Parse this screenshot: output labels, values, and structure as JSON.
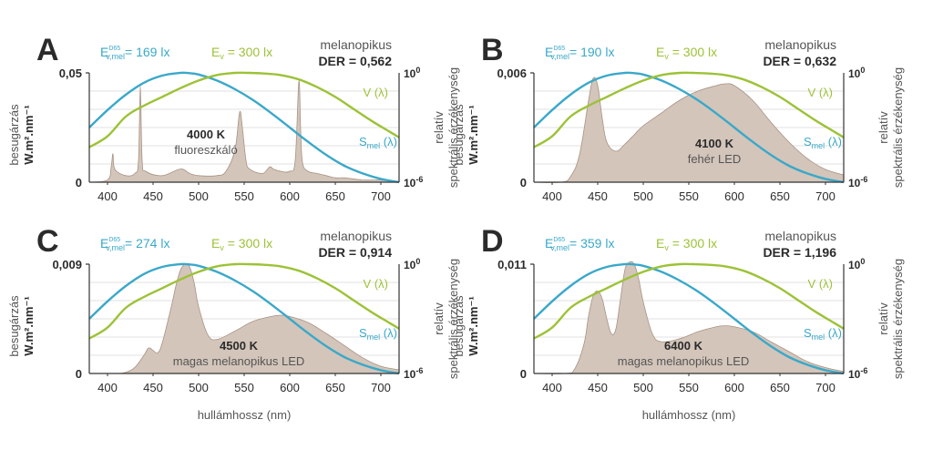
{
  "colors": {
    "smel": "#3aa8c9",
    "vlambda": "#9cc236",
    "spectrum_fill": "#d3c5ba",
    "spectrum_stroke": "#a89384",
    "axis": "#333333",
    "grid": "#d9d9d9",
    "text_dark": "#2b2b2b",
    "text_gray": "#555555"
  },
  "common": {
    "ylabel_line1": "besugárzás",
    "ylabel_line2": "W.m².nm⁻¹",
    "right_ylabel_line1": "relatív",
    "right_ylabel_line2": "spektrális érzékenység",
    "xlabel": "hullámhossz (nm)",
    "right_tick_top_base": "10",
    "right_tick_top_exp": "0",
    "right_tick_bottom_base": "10",
    "right_tick_bottom_exp": "-6",
    "ev_label": "E",
    "ev_sub": "v",
    "ev_value": " = 300 lx",
    "emel_label": "E",
    "emel_sup": "D65",
    "emel_sub": "v,mel",
    "melanopic": "melanopikus",
    "vlambda_label": "V (λ)",
    "smel_label": "S",
    "smel_sub": "mel",
    "smel_suffix": " (λ)",
    "y_zero": "0"
  },
  "chart_data": [
    {
      "panel": "A",
      "type": "area",
      "emel_value": "= 169 lx",
      "der": "DER = 0,562",
      "ymax_label": "0,05",
      "ylim": [
        0,
        0.05
      ],
      "xlim": [
        380,
        720
      ],
      "xticks": [
        400,
        450,
        500,
        550,
        600,
        650,
        700
      ],
      "source_title": "4000 K",
      "source_subtitle": "fluoreszkáló",
      "spectrum": {
        "x": [
          380,
          400,
          404,
          406,
          408,
          420,
          430,
          434,
          436,
          438,
          442,
          460,
          480,
          490,
          500,
          520,
          530,
          540,
          545,
          548,
          552,
          556,
          570,
          578,
          582,
          590,
          600,
          606,
          610,
          612,
          614,
          620,
          630,
          640,
          650,
          660,
          680,
          700,
          720
        ],
        "y": [
          0,
          0.001,
          0.007,
          0.013,
          0.006,
          0.003,
          0.004,
          0.01,
          0.044,
          0.01,
          0.005,
          0.003,
          0.006,
          0.004,
          0.003,
          0.003,
          0.005,
          0.015,
          0.032,
          0.025,
          0.01,
          0.006,
          0.004,
          0.007,
          0.006,
          0.005,
          0.005,
          0.01,
          0.046,
          0.024,
          0.009,
          0.005,
          0.004,
          0.003,
          0.002,
          0.002,
          0.001,
          0.001,
          0
        ]
      }
    },
    {
      "panel": "B",
      "type": "area",
      "emel_value": "= 190 lx",
      "der": "DER = 0,632",
      "ymax_label": "0,006",
      "ylim": [
        0,
        0.006
      ],
      "xlim": [
        380,
        720
      ],
      "xticks": [
        400,
        450,
        500,
        550,
        600,
        650,
        700
      ],
      "source_title": "4100 K",
      "source_subtitle": "fehér LED",
      "spectrum": {
        "x": [
          380,
          410,
          420,
          430,
          440,
          445,
          450,
          455,
          460,
          470,
          480,
          490,
          500,
          520,
          540,
          560,
          580,
          590,
          600,
          620,
          640,
          660,
          680,
          700,
          720
        ],
        "y": [
          0,
          0,
          0.0003,
          0.0015,
          0.0045,
          0.0057,
          0.0053,
          0.0035,
          0.0022,
          0.0017,
          0.0021,
          0.0026,
          0.0031,
          0.0038,
          0.0045,
          0.005,
          0.0053,
          0.0054,
          0.0053,
          0.0045,
          0.0033,
          0.0022,
          0.0013,
          0.0007,
          0.0004
        ]
      }
    },
    {
      "panel": "C",
      "type": "area",
      "emel_value": "= 274 lx",
      "der": "DER = 0,914",
      "ymax_label": "0,009",
      "ylim": [
        0,
        0.009
      ],
      "xlim": [
        380,
        720
      ],
      "xticks": [
        400,
        450,
        500,
        550,
        600,
        650,
        700
      ],
      "source_title": "4500 K",
      "source_subtitle": "magas melanopikus LED",
      "spectrum": {
        "x": [
          380,
          410,
          420,
          430,
          440,
          445,
          450,
          455,
          460,
          470,
          475,
          480,
          485,
          490,
          495,
          500,
          510,
          520,
          540,
          560,
          580,
          590,
          600,
          620,
          640,
          660,
          680,
          700,
          720
        ],
        "y": [
          0,
          0,
          0.0001,
          0.0005,
          0.0015,
          0.0021,
          0.0019,
          0.0017,
          0.0025,
          0.0055,
          0.0072,
          0.0085,
          0.009,
          0.0088,
          0.0075,
          0.0055,
          0.0032,
          0.0028,
          0.0035,
          0.0043,
          0.0047,
          0.0048,
          0.0047,
          0.0042,
          0.0033,
          0.0023,
          0.0013,
          0.0006,
          0.0003
        ]
      }
    },
    {
      "panel": "D",
      "type": "area",
      "emel_value": "= 359 lx",
      "der": "DER = 1,196",
      "ymax_label": "0,011",
      "ylim": [
        0,
        0.011
      ],
      "xlim": [
        380,
        720
      ],
      "xticks": [
        400,
        450,
        500,
        550,
        600,
        650,
        700
      ],
      "source_title": "6400 K",
      "source_subtitle": "magas melanopikus LED",
      "spectrum": {
        "x": [
          380,
          415,
          425,
          435,
          440,
          445,
          450,
          455,
          460,
          465,
          470,
          475,
          480,
          485,
          490,
          495,
          500,
          510,
          520,
          540,
          560,
          580,
          590,
          600,
          620,
          640,
          660,
          680,
          700,
          720
        ],
        "y": [
          0,
          0,
          0.0005,
          0.003,
          0.0058,
          0.0078,
          0.0083,
          0.0075,
          0.0055,
          0.004,
          0.0045,
          0.0075,
          0.0105,
          0.0112,
          0.011,
          0.0095,
          0.0072,
          0.004,
          0.0032,
          0.0035,
          0.0042,
          0.0047,
          0.0048,
          0.0047,
          0.0042,
          0.0032,
          0.0022,
          0.0012,
          0.0006,
          0.0002
        ]
      }
    }
  ],
  "sensitivity_curves": {
    "smel": {
      "x": [
        380,
        400,
        420,
        440,
        460,
        480,
        490,
        500,
        520,
        540,
        560,
        580,
        600,
        620,
        640,
        660,
        680,
        700,
        720
      ],
      "y": [
        0.5,
        0.66,
        0.8,
        0.91,
        0.975,
        1.0,
        0.997,
        0.985,
        0.93,
        0.85,
        0.75,
        0.63,
        0.5,
        0.37,
        0.25,
        0.15,
        0.08,
        0.03,
        0.0
      ]
    },
    "vlambda": {
      "x": [
        380,
        400,
        420,
        440,
        460,
        480,
        500,
        520,
        540,
        555,
        570,
        590,
        610,
        630,
        650,
        670,
        690,
        710,
        720
      ],
      "y": [
        0.32,
        0.42,
        0.6,
        0.7,
        0.78,
        0.86,
        0.93,
        0.98,
        1.0,
        1.0,
        0.995,
        0.98,
        0.94,
        0.87,
        0.78,
        0.67,
        0.56,
        0.46,
        0.41
      ]
    }
  }
}
